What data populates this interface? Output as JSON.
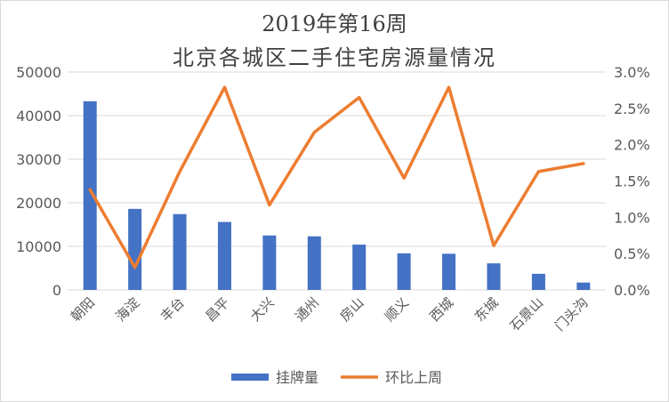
{
  "chart_data": {
    "type": "bar",
    "title": "2019年第16周",
    "subtitle": "北京各城区二手住宅房源量情况",
    "categories": [
      "朝阳",
      "海淀",
      "丰台",
      "昌平",
      "大兴",
      "通州",
      "房山",
      "顺义",
      "西城",
      "东城",
      "石景山",
      "门头沟"
    ],
    "series": [
      {
        "name": "挂牌量",
        "type": "bar",
        "axis": "left",
        "color": "#4472C4",
        "values": [
          43300,
          18600,
          17400,
          15600,
          12500,
          12300,
          10400,
          8400,
          8300,
          6100,
          3700,
          1700
        ]
      },
      {
        "name": "环比上周",
        "type": "line",
        "axis": "right",
        "color": "#ED7D31",
        "values": [
          0.0138,
          0.0031,
          0.0163,
          0.0279,
          0.0117,
          0.0217,
          0.0265,
          0.0154,
          0.0279,
          0.0061,
          0.0163,
          0.0174
        ]
      }
    ],
    "y_left": {
      "min": 0,
      "max": 50000,
      "ticks": [
        "0",
        "10000",
        "20000",
        "30000",
        "40000",
        "50000"
      ]
    },
    "y_right": {
      "min": 0,
      "max": 0.03,
      "ticks": [
        "0.0%",
        "0.5%",
        "1.0%",
        "1.5%",
        "2.0%",
        "2.5%",
        "3.0%"
      ]
    },
    "grid": true,
    "legend_position": "bottom"
  }
}
